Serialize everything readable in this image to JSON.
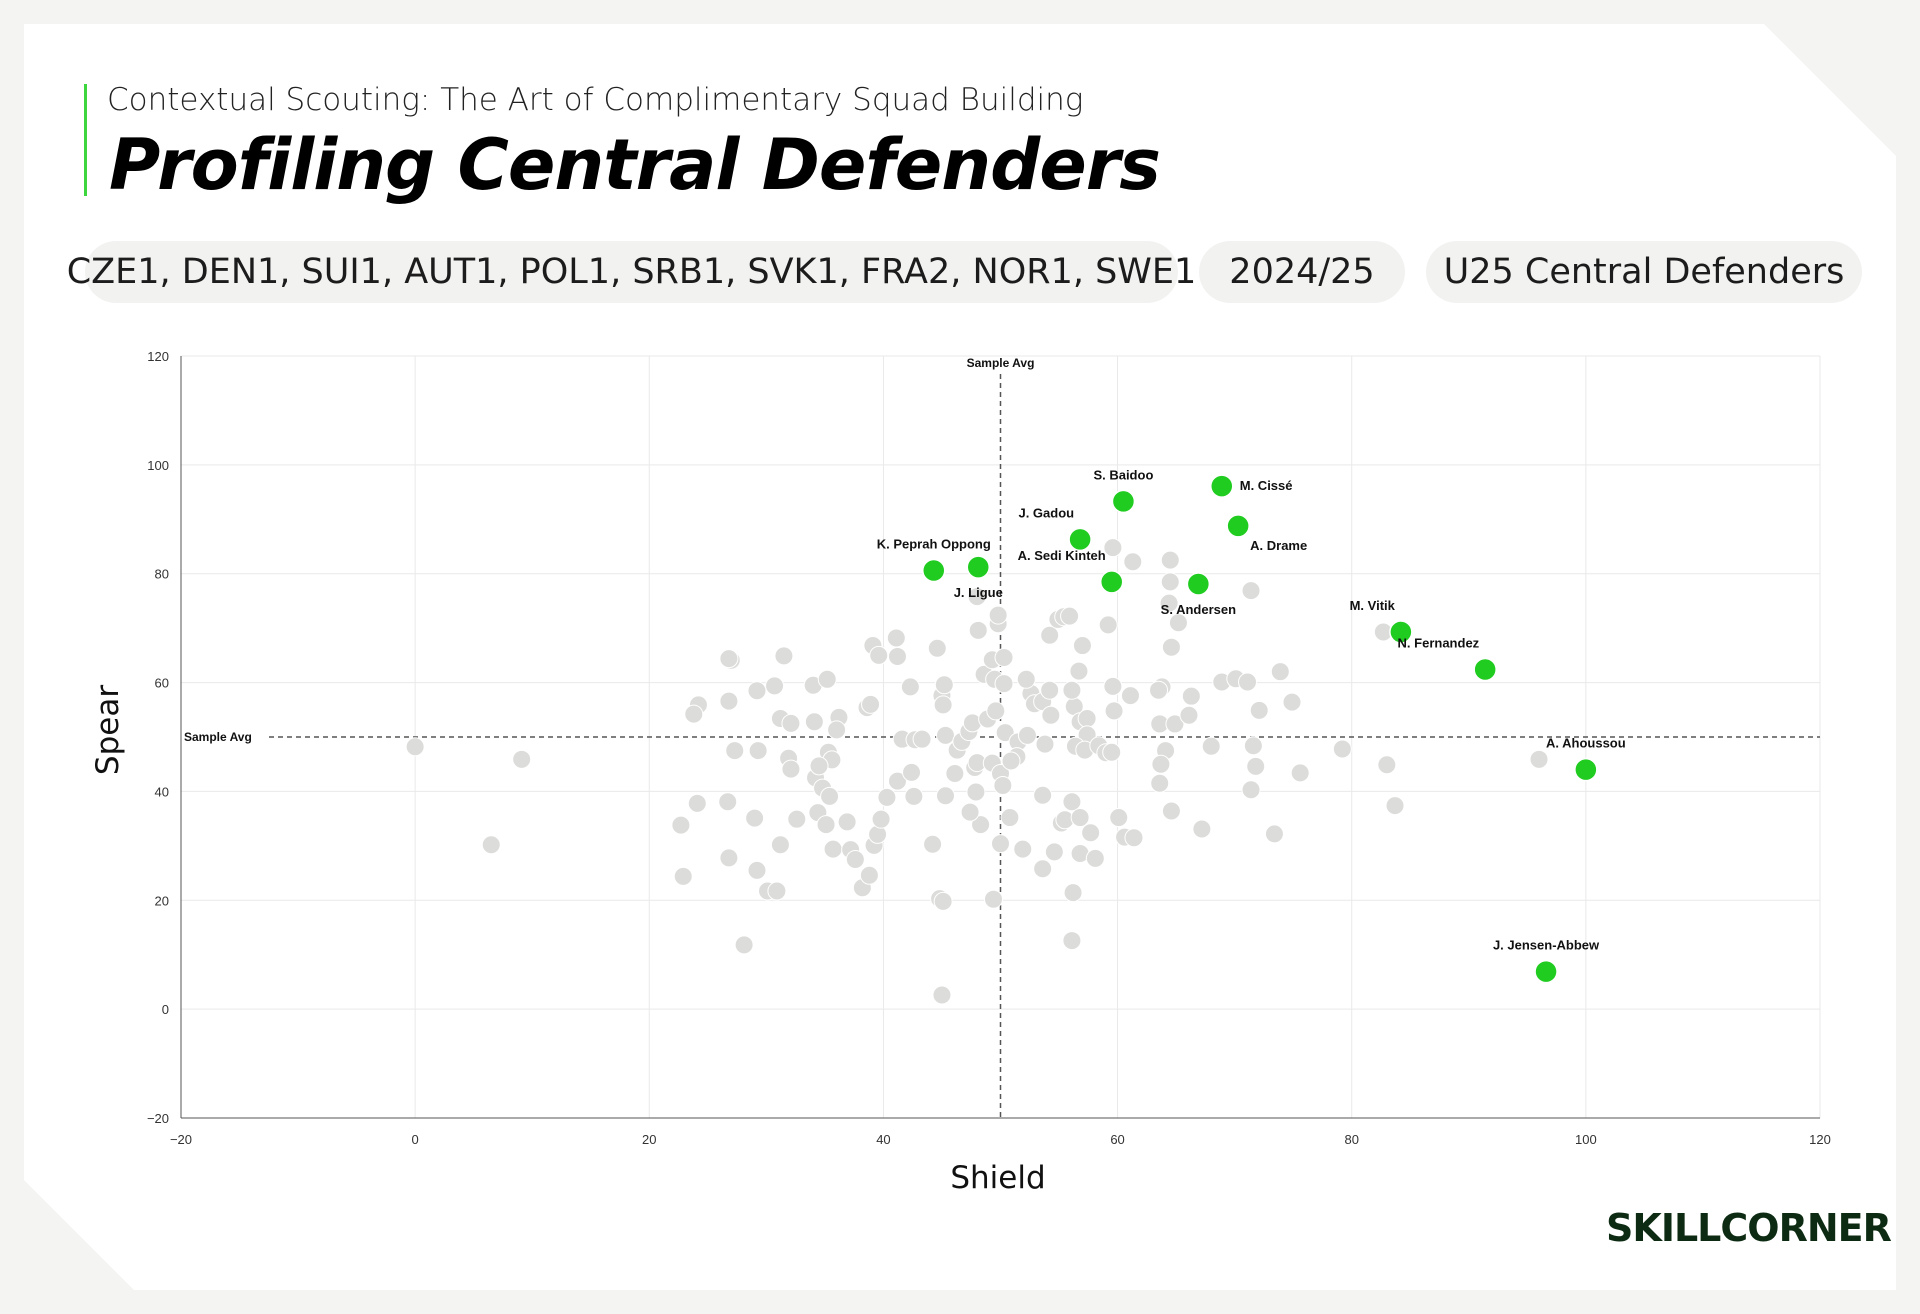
{
  "header": {
    "subtitle": "Contextual Scouting: The Art of Complimentary Squad Building",
    "title": "Profiling Central Defenders"
  },
  "filters": {
    "leagues": "CZE1, DEN1, SUI1, AUT1, POL1, SRB1, SVK1, FRA2, NOR1, SWE1",
    "season": "2024/25",
    "group": "U25 Central Defenders"
  },
  "brand": {
    "logo_text": "SKILLCORNER"
  },
  "colors": {
    "highlight": "#1fcc1f",
    "sample": "#dcdcda",
    "accent": "#3dd63d"
  },
  "chart_data": {
    "type": "scatter",
    "xlabel": "Shield",
    "ylabel": "Spear",
    "xlim": [
      -20,
      120
    ],
    "ylim": [
      -20,
      120
    ],
    "xticks": [
      -20,
      0,
      20,
      40,
      60,
      80,
      100,
      120
    ],
    "yticks": [
      -20,
      0,
      20,
      40,
      60,
      80,
      100,
      120
    ],
    "grid": true,
    "reference_lines": {
      "x": {
        "value": 50,
        "label": "Sample Avg"
      },
      "y": {
        "value": 50,
        "label": "Sample Avg"
      }
    },
    "highlighted": [
      {
        "name": "S. Baidoo",
        "x": 60.5,
        "y": 93.3,
        "label_pos": "above"
      },
      {
        "name": "M. Cissé",
        "x": 68.9,
        "y": 96.1,
        "label_pos": "right"
      },
      {
        "name": "J. Gadou",
        "x": 56.8,
        "y": 86.3,
        "label_pos": "above-left"
      },
      {
        "name": "A. Drame",
        "x": 70.3,
        "y": 88.8,
        "label_pos": "below-right"
      },
      {
        "name": "K. Peprah Oppong",
        "x": 44.3,
        "y": 80.6,
        "label_pos": "above"
      },
      {
        "name": "J. Ligue",
        "x": 48.1,
        "y": 81.2,
        "label_pos": "below"
      },
      {
        "name": "A. Sedi Kinteh",
        "x": 59.5,
        "y": 78.5,
        "label_pos": "above-left"
      },
      {
        "name": "S. Andersen",
        "x": 66.9,
        "y": 78.1,
        "label_pos": "below"
      },
      {
        "name": "M. Vitik",
        "x": 84.2,
        "y": 69.3,
        "label_pos": "above-left"
      },
      {
        "name": "N. Fernandez",
        "x": 91.4,
        "y": 62.4,
        "label_pos": "above-left"
      },
      {
        "name": "A. Ahoussou",
        "x": 100.0,
        "y": 44.0,
        "label_pos": "above"
      },
      {
        "name": "J. Jensen-Abbew",
        "x": 96.6,
        "y": 6.9,
        "label_pos": "above"
      }
    ],
    "sample": [
      [
        0.0,
        48.2
      ],
      [
        9.1,
        45.9
      ],
      [
        6.5,
        30.2
      ],
      [
        28.1,
        11.8
      ],
      [
        22.9,
        24.4
      ],
      [
        22.7,
        33.8
      ],
      [
        24.1,
        37.8
      ],
      [
        26.7,
        38.1
      ],
      [
        26.8,
        27.8
      ],
      [
        29.2,
        25.5
      ],
      [
        30.1,
        21.7
      ],
      [
        30.9,
        21.7
      ],
      [
        31.2,
        30.2
      ],
      [
        29.0,
        35.1
      ],
      [
        27.3,
        47.5
      ],
      [
        29.3,
        47.5
      ],
      [
        26.8,
        56.6
      ],
      [
        24.2,
        55.9
      ],
      [
        23.8,
        54.2
      ],
      [
        27.0,
        64.1
      ],
      [
        26.8,
        64.4
      ],
      [
        29.2,
        58.5
      ],
      [
        30.7,
        59.4
      ],
      [
        31.5,
        64.9
      ],
      [
        31.2,
        53.4
      ],
      [
        32.1,
        52.5
      ],
      [
        31.9,
        46.1
      ],
      [
        32.1,
        44.1
      ],
      [
        32.6,
        34.9
      ],
      [
        34.2,
        42.5
      ],
      [
        34.8,
        40.6
      ],
      [
        35.4,
        39.1
      ],
      [
        34.4,
        36.1
      ],
      [
        35.1,
        33.9
      ],
      [
        35.7,
        29.4
      ],
      [
        37.2,
        29.3
      ],
      [
        36.9,
        34.4
      ],
      [
        37.6,
        27.5
      ],
      [
        38.2,
        22.3
      ],
      [
        38.8,
        24.6
      ],
      [
        39.2,
        30.1
      ],
      [
        39.5,
        32.1
      ],
      [
        39.8,
        34.9
      ],
      [
        40.3,
        38.9
      ],
      [
        41.2,
        41.9
      ],
      [
        42.4,
        43.5
      ],
      [
        42.6,
        39.1
      ],
      [
        44.2,
        30.3
      ],
      [
        45.3,
        39.2
      ],
      [
        44.8,
        20.3
      ],
      [
        45.1,
        19.8
      ],
      [
        45.0,
        2.6
      ],
      [
        34.0,
        59.5
      ],
      [
        35.2,
        60.6
      ],
      [
        36.2,
        53.6
      ],
      [
        36.0,
        51.3
      ],
      [
        35.3,
        47.2
      ],
      [
        35.6,
        45.8
      ],
      [
        34.5,
        44.7
      ],
      [
        34.1,
        52.8
      ],
      [
        38.6,
        55.4
      ],
      [
        38.9,
        56.0
      ],
      [
        39.1,
        66.8
      ],
      [
        39.6,
        65.0
      ],
      [
        41.1,
        68.2
      ],
      [
        41.2,
        64.8
      ],
      [
        42.3,
        59.2
      ],
      [
        41.6,
        49.6
      ],
      [
        42.7,
        49.5
      ],
      [
        43.3,
        49.6
      ],
      [
        44.6,
        66.3
      ],
      [
        45.0,
        57.6
      ],
      [
        45.2,
        59.6
      ],
      [
        45.1,
        55.9
      ],
      [
        45.3,
        50.3
      ],
      [
        46.3,
        47.6
      ],
      [
        46.1,
        43.3
      ],
      [
        46.7,
        49.2
      ],
      [
        47.3,
        51.0
      ],
      [
        47.8,
        44.4
      ],
      [
        48.0,
        45.3
      ],
      [
        47.6,
        52.6
      ],
      [
        48.0,
        75.8
      ],
      [
        48.1,
        69.6
      ],
      [
        48.6,
        61.5
      ],
      [
        48.9,
        53.3
      ],
      [
        49.6,
        54.8
      ],
      [
        49.3,
        45.2
      ],
      [
        50.0,
        43.3
      ],
      [
        50.2,
        41.1
      ],
      [
        49.5,
        60.6
      ],
      [
        49.3,
        64.2
      ],
      [
        49.8,
        70.8
      ],
      [
        49.8,
        72.4
      ],
      [
        50.3,
        64.6
      ],
      [
        50.3,
        59.8
      ],
      [
        50.4,
        50.8
      ],
      [
        51.5,
        49.1
      ],
      [
        51.4,
        46.4
      ],
      [
        52.3,
        50.3
      ],
      [
        52.6,
        58.0
      ],
      [
        52.2,
        60.6
      ],
      [
        52.9,
        56.1
      ],
      [
        53.6,
        56.5
      ],
      [
        53.8,
        48.7
      ],
      [
        54.2,
        58.6
      ],
      [
        54.3,
        54.0
      ],
      [
        54.2,
        68.7
      ],
      [
        54.9,
        71.6
      ],
      [
        55.4,
        72.1
      ],
      [
        55.9,
        72.2
      ],
      [
        56.3,
        55.6
      ],
      [
        56.1,
        58.6
      ],
      [
        56.7,
        62.1
      ],
      [
        57.0,
        66.8
      ],
      [
        56.8,
        52.8
      ],
      [
        57.4,
        53.4
      ],
      [
        57.4,
        50.4
      ],
      [
        56.4,
        48.3
      ],
      [
        57.2,
        47.6
      ],
      [
        58.4,
        48.4
      ],
      [
        59.0,
        47.1
      ],
      [
        59.5,
        47.2
      ],
      [
        59.2,
        70.6
      ],
      [
        59.6,
        84.8
      ],
      [
        59.6,
        59.3
      ],
      [
        59.7,
        54.8
      ],
      [
        61.1,
        57.6
      ],
      [
        61.3,
        82.2
      ],
      [
        64.5,
        82.5
      ],
      [
        64.5,
        78.5
      ],
      [
        64.4,
        74.6
      ],
      [
        65.2,
        71.0
      ],
      [
        64.6,
        66.5
      ],
      [
        63.8,
        59.2
      ],
      [
        63.5,
        58.6
      ],
      [
        63.6,
        52.4
      ],
      [
        64.9,
        52.4
      ],
      [
        66.1,
        54.0
      ],
      [
        66.3,
        57.5
      ],
      [
        64.1,
        47.5
      ],
      [
        63.7,
        45.0
      ],
      [
        63.6,
        41.5
      ],
      [
        64.6,
        36.4
      ],
      [
        67.2,
        33.1
      ],
      [
        68.0,
        48.3
      ],
      [
        68.9,
        60.1
      ],
      [
        70.1,
        60.7
      ],
      [
        71.1,
        60.1
      ],
      [
        71.4,
        76.9
      ],
      [
        71.6,
        48.4
      ],
      [
        71.8,
        44.6
      ],
      [
        71.4,
        40.3
      ],
      [
        72.1,
        54.9
      ],
      [
        73.4,
        32.2
      ],
      [
        73.9,
        62.0
      ],
      [
        74.9,
        56.4
      ],
      [
        75.6,
        43.4
      ],
      [
        79.2,
        47.8
      ],
      [
        82.7,
        69.3
      ],
      [
        83.0,
        44.9
      ],
      [
        83.7,
        37.4
      ],
      [
        96.0,
        45.9
      ],
      [
        53.6,
        25.8
      ],
      [
        54.6,
        28.9
      ],
      [
        55.2,
        34.2
      ],
      [
        55.5,
        34.8
      ],
      [
        56.1,
        38.1
      ],
      [
        56.8,
        35.2
      ],
      [
        56.8,
        28.6
      ],
      [
        58.1,
        27.7
      ],
      [
        57.7,
        32.4
      ],
      [
        60.1,
        35.2
      ],
      [
        60.6,
        31.6
      ],
      [
        61.4,
        31.5
      ],
      [
        56.2,
        21.4
      ],
      [
        56.1,
        12.6
      ],
      [
        51.9,
        29.4
      ],
      [
        50.0,
        30.4
      ],
      [
        50.8,
        35.2
      ],
      [
        49.4,
        20.2
      ],
      [
        48.3,
        33.9
      ],
      [
        47.9,
        39.9
      ],
      [
        47.4,
        36.2
      ],
      [
        50.9,
        45.6
      ],
      [
        53.6,
        39.3
      ]
    ]
  }
}
